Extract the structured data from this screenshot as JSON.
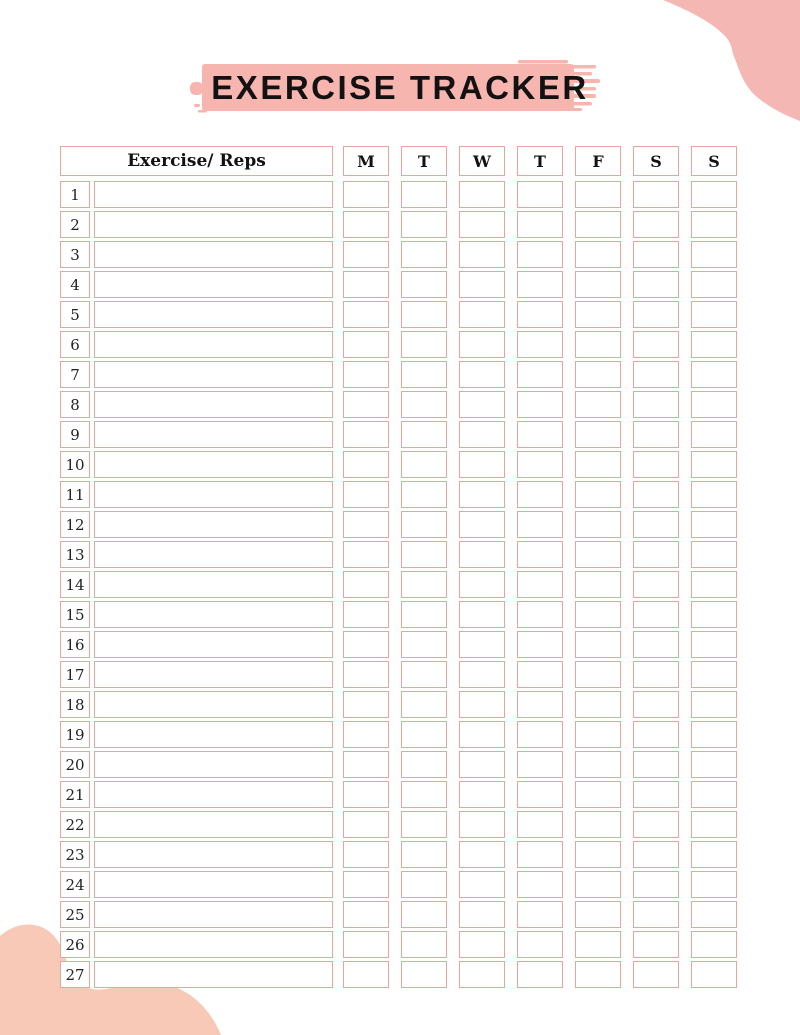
{
  "page": {
    "title": "EXERCISE TRACKER"
  },
  "table": {
    "header": {
      "exercise_label": "Exercise/ Reps",
      "days": [
        "M",
        "T",
        "W",
        "T",
        "F",
        "S",
        "S"
      ]
    },
    "rows": [
      "1",
      "2",
      "3",
      "4",
      "5",
      "6",
      "7",
      "8",
      "9",
      "10",
      "11",
      "12",
      "13",
      "14",
      "15",
      "16",
      "17",
      "18",
      "19",
      "20",
      "21",
      "22",
      "23",
      "24",
      "25",
      "26",
      "27"
    ]
  },
  "colors": {
    "accent": "#f7b5b0",
    "border": "#eba49d",
    "blob-top": "#f4b7b4",
    "blob-bottom": "#f8c9b6",
    "ink": "#121212"
  }
}
